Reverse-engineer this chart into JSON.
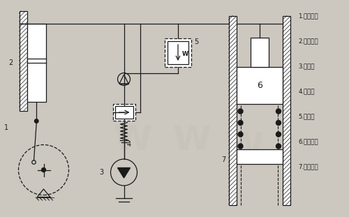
{
  "bg_color": "#ccc8c0",
  "line_color": "#1a1a1a",
  "legend_items": [
    "1.曲柄連桿",
    "2.輸入活塞",
    "3.補油泵",
    "4.溢流閥",
    "5.安全閥",
    "6.輸出活塞",
    "7.回程彈簧"
  ],
  "figsize": [
    5.0,
    3.11
  ],
  "dpi": 100
}
